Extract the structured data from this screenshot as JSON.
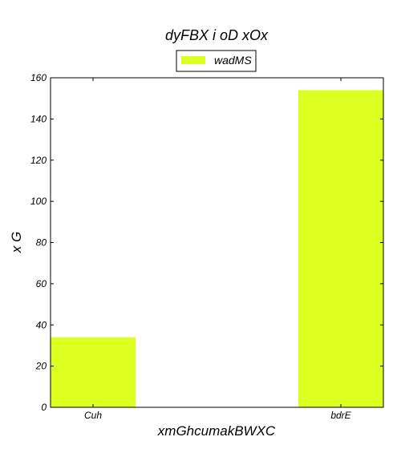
{
  "chart_data": {
    "type": "bar",
    "title": "dyFBX i oD xOx",
    "xlabel": "xmGhcumakBWXC",
    "ylabel": "x  G",
    "categories": [
      "Cuh",
      "bdrE"
    ],
    "series": [
      {
        "name": "wadMS",
        "values": [
          34,
          154
        ],
        "color": "#dbff1e"
      }
    ],
    "ylim": [
      0,
      160
    ],
    "yticks": [
      0,
      20,
      40,
      60,
      80,
      100,
      120,
      140,
      160
    ],
    "grid": false,
    "legend_position": "top-center"
  }
}
